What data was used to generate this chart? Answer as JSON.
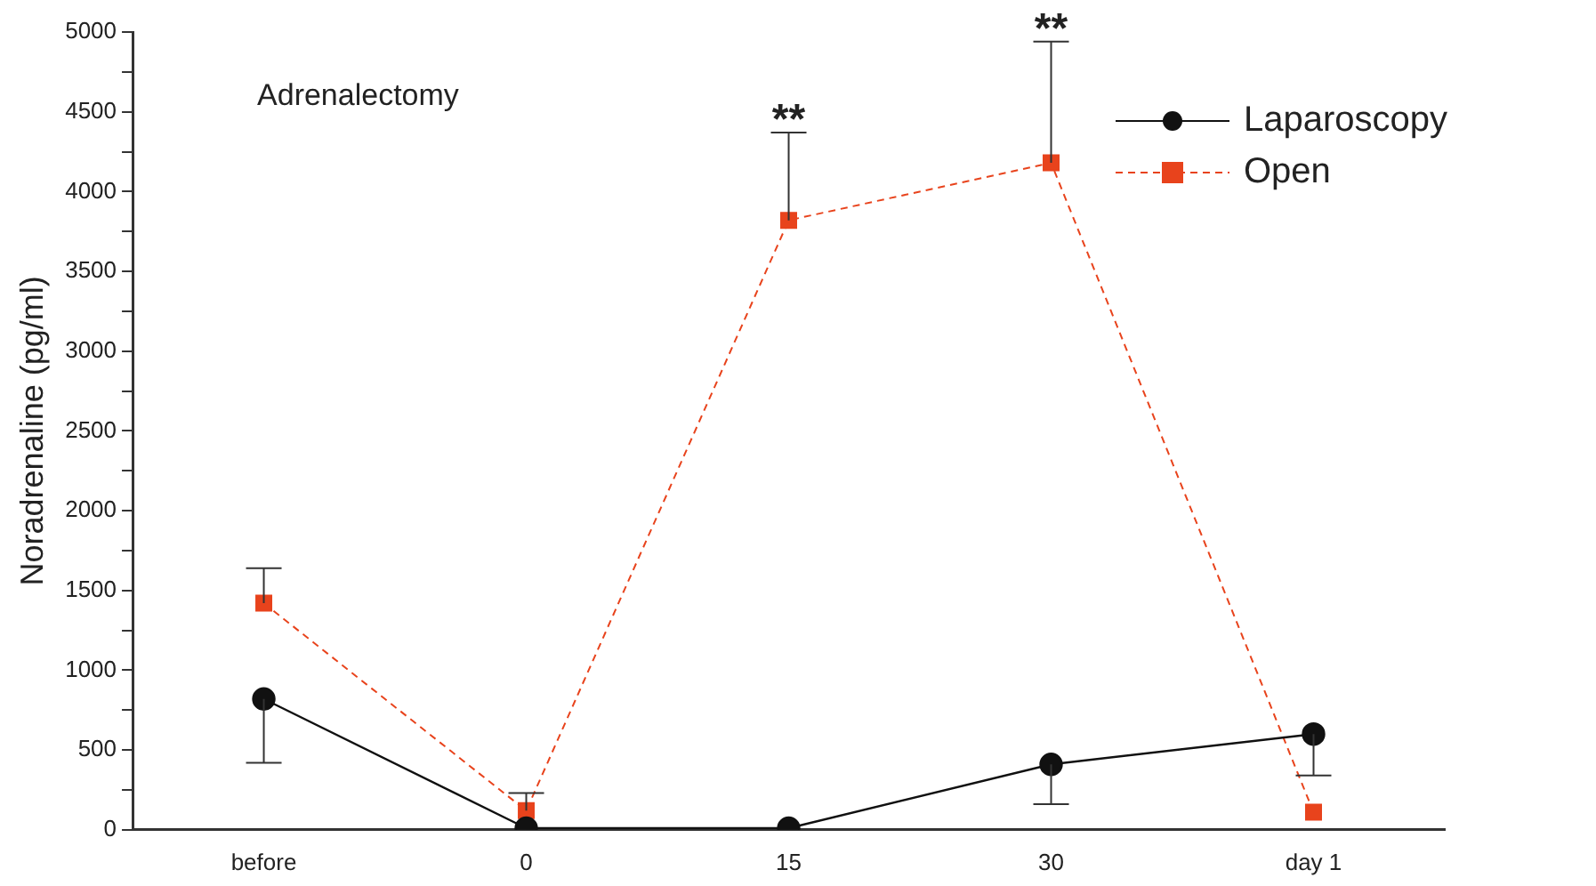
{
  "chart_data": {
    "type": "line",
    "ylabel": "Noradrenaline (pg/ml)",
    "categories": [
      "before",
      "0",
      "15",
      "30",
      "day 1"
    ],
    "series": [
      {
        "name": "Laparoscopy",
        "color": "#111111",
        "marker": "circle",
        "line_style": "solid",
        "values": [
          820,
          10,
          10,
          410,
          600
        ],
        "errors": [
          [
            420,
            820
          ],
          null,
          null,
          [
            160,
            410
          ],
          [
            340,
            600
          ]
        ]
      },
      {
        "name": "Open",
        "color": "#e8431c",
        "marker": "square",
        "line_style": "dashed",
        "values": [
          1420,
          120,
          3820,
          4180,
          110
        ],
        "errors": [
          [
            1420,
            1640
          ],
          [
            120,
            230
          ],
          [
            3820,
            4370
          ],
          [
            4180,
            4940
          ],
          null
        ]
      }
    ],
    "ylim": [
      0,
      5000
    ],
    "yticks": [
      0,
      {
        "value": 250,
        "label": null
      },
      500,
      {
        "value": 750,
        "label": null
      },
      1000,
      {
        "value": 1250,
        "label": null
      },
      1500,
      {
        "value": 1750,
        "label": null
      },
      2000,
      {
        "value": 2250,
        "label": null
      },
      2500,
      {
        "value": 2750,
        "label": null
      },
      3000,
      {
        "value": 3250,
        "label": null
      },
      3500,
      {
        "value": 3750,
        "label": null
      },
      4000,
      {
        "value": 4250,
        "label": null
      },
      4500,
      {
        "value": 4750,
        "label": null
      },
      5000
    ],
    "grid": false,
    "legend": "top right",
    "annotations": [
      "Adrenalectomy",
      {
        "text": "**",
        "x": "15",
        "y": 4370
      },
      {
        "text": "**",
        "x": "30",
        "y": 4940
      }
    ]
  }
}
